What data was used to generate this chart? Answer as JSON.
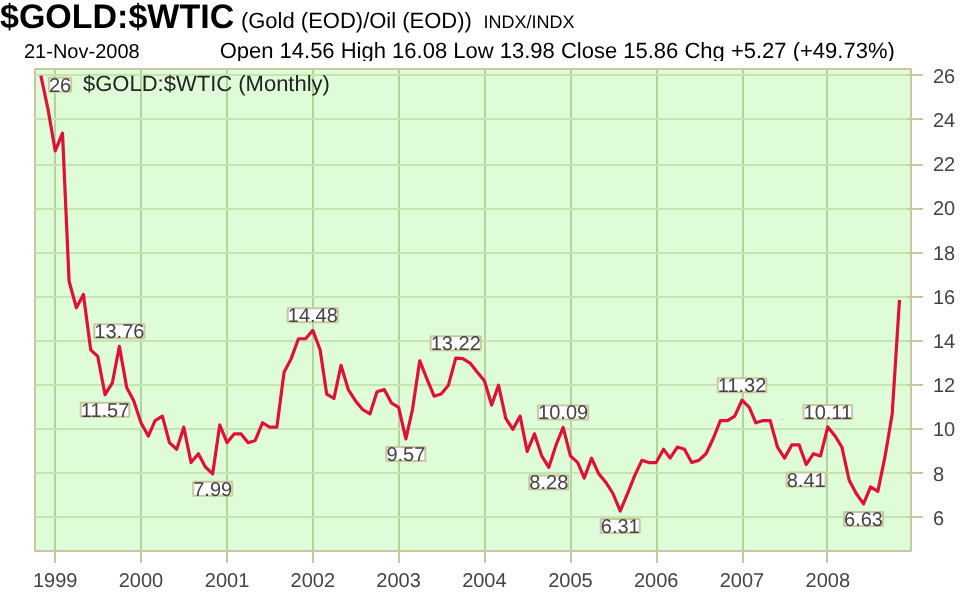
{
  "chart_data": {
    "type": "line",
    "title": "$GOLD:$WTIC",
    "subtitle": "(Gold (EOD)/Oil (EOD))",
    "annotations": [
      "INDX/INDX",
      "21-Nov-2008",
      "Open 14.56  High 16.08  Low 13.98  Close 15.86  Chg +5.27 (+49.73%)",
      "$GOLD:$WTIC (Monthly)",
      {
        "text": "26",
        "x": "1998-11",
        "y": 26
      },
      {
        "text": "11.57",
        "x": "1999-08",
        "y": 11.57
      },
      {
        "text": "13.76",
        "x": "1999-10",
        "y": 13.76
      },
      {
        "text": "7.99",
        "x": "2000-11",
        "y": 7.99
      },
      {
        "text": "14.48",
        "x": "2002-01",
        "y": 14.48
      },
      {
        "text": "9.57",
        "x": "2003-02",
        "y": 9.57
      },
      {
        "text": "13.22",
        "x": "2003-09",
        "y": 13.22
      },
      {
        "text": "8.28",
        "x": "2004-10",
        "y": 8.28
      },
      {
        "text": "10.09",
        "x": "2004-12",
        "y": 10.09
      },
      {
        "text": "6.31",
        "x": "2005-08",
        "y": 6.31
      },
      {
        "text": "11.32",
        "x": "2007-01",
        "y": 11.32
      },
      {
        "text": "8.41",
        "x": "2007-10",
        "y": 8.41
      },
      {
        "text": "10.11",
        "x": "2008-01",
        "y": 10.11
      },
      {
        "text": "6.63",
        "x": "2008-06",
        "y": 6.63
      }
    ],
    "x": [
      "1998-11",
      "1998-12",
      "1999-01",
      "1999-02",
      "1999-03",
      "1999-04",
      "1999-05",
      "1999-06",
      "1999-07",
      "1999-08",
      "1999-09",
      "1999-10",
      "1999-11",
      "1999-12",
      "2000-01",
      "2000-02",
      "2000-03",
      "2000-04",
      "2000-05",
      "2000-06",
      "2000-07",
      "2000-08",
      "2000-09",
      "2000-10",
      "2000-11",
      "2000-12",
      "2001-01",
      "2001-02",
      "2001-03",
      "2001-04",
      "2001-05",
      "2001-06",
      "2001-07",
      "2001-08",
      "2001-09",
      "2001-10",
      "2001-11",
      "2001-12",
      "2002-01",
      "2002-02",
      "2002-03",
      "2002-04",
      "2002-05",
      "2002-06",
      "2002-07",
      "2002-08",
      "2002-09",
      "2002-10",
      "2002-11",
      "2002-12",
      "2003-01",
      "2003-02",
      "2003-03",
      "2003-04",
      "2003-05",
      "2003-06",
      "2003-07",
      "2003-08",
      "2003-09",
      "2003-10",
      "2003-11",
      "2003-12",
      "2004-01",
      "2004-02",
      "2004-03",
      "2004-04",
      "2004-05",
      "2004-06",
      "2004-07",
      "2004-08",
      "2004-09",
      "2004-10",
      "2004-11",
      "2004-12",
      "2005-01",
      "2005-02",
      "2005-03",
      "2005-04",
      "2005-05",
      "2005-06",
      "2005-07",
      "2005-08",
      "2005-09",
      "2005-10",
      "2005-11",
      "2005-12",
      "2006-01",
      "2006-02",
      "2006-03",
      "2006-04",
      "2006-05",
      "2006-06",
      "2006-07",
      "2006-08",
      "2006-09",
      "2006-10",
      "2006-11",
      "2006-12",
      "2007-01",
      "2007-02",
      "2007-03",
      "2007-04",
      "2007-05",
      "2007-06",
      "2007-07",
      "2007-08",
      "2007-09",
      "2007-10",
      "2007-11",
      "2007-12",
      "2008-01",
      "2008-02",
      "2008-03",
      "2008-04",
      "2008-05",
      "2008-06",
      "2008-07",
      "2008-08",
      "2008-09",
      "2008-10",
      "2008-11"
    ],
    "series": [
      {
        "color": "#e0103a",
        "values": [
          26,
          24.5,
          22.6,
          23.4,
          16.7,
          15.5,
          16.1,
          13.6,
          13.3,
          11.57,
          12.1,
          13.76,
          11.9,
          11.3,
          10.3,
          9.7,
          10.4,
          10.6,
          9.4,
          9.1,
          10.1,
          8.5,
          8.9,
          8.3,
          7.99,
          10.2,
          9.4,
          9.8,
          9.8,
          9.4,
          9.5,
          10.3,
          10.1,
          10.1,
          12.6,
          13.2,
          14.1,
          14.1,
          14.48,
          13.6,
          11.6,
          11.4,
          12.9,
          11.8,
          11.3,
          10.9,
          10.7,
          11.7,
          11.8,
          11.2,
          11.0,
          9.57,
          10.9,
          13.1,
          12.3,
          11.5,
          11.6,
          12.0,
          13.22,
          13.2,
          13.0,
          12.6,
          12.2,
          11.1,
          12.0,
          10.5,
          10.0,
          10.6,
          9.0,
          9.8,
          8.8,
          8.28,
          9.3,
          10.09,
          8.8,
          8.5,
          7.8,
          8.7,
          8.0,
          7.6,
          7.1,
          6.31,
          7.1,
          7.9,
          8.6,
          8.5,
          8.5,
          9.1,
          8.7,
          9.2,
          9.1,
          8.5,
          8.6,
          8.9,
          9.6,
          10.4,
          10.4,
          10.6,
          11.32,
          11.0,
          10.3,
          10.4,
          10.4,
          9.2,
          8.7,
          9.3,
          9.3,
          8.41,
          8.9,
          8.8,
          10.11,
          9.7,
          9.2,
          7.7,
          7.1,
          6.63,
          7.4,
          7.2,
          8.8,
          10.7,
          15.86
        ]
      }
    ],
    "xlim": [
      "1998-10-07",
      "2008-12-20"
    ],
    "xticks": [
      "1999",
      "2000",
      "2001",
      "2002",
      "2003",
      "2004",
      "2005",
      "2006",
      "2007",
      "2008"
    ],
    "ylim": [
      4.5,
      26.3
    ],
    "yticks": [
      6,
      8,
      10,
      12,
      14,
      16,
      18,
      20,
      22,
      24,
      26
    ],
    "grid": true,
    "marker": "none",
    "line_style": "solid"
  }
}
